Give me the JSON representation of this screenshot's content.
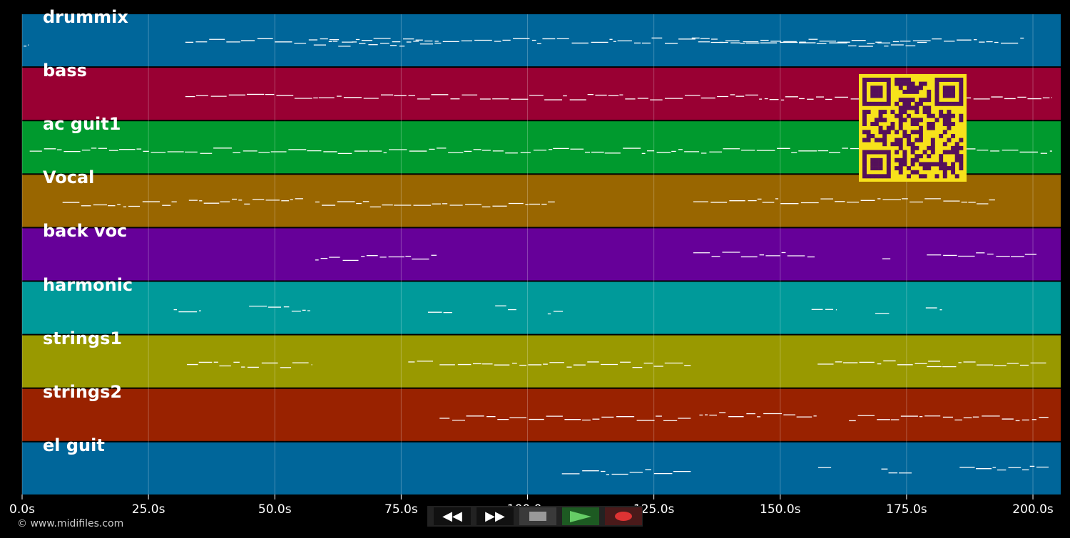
{
  "colors": {
    "background": "#000000",
    "note": "#ffffff",
    "qr_fg": "#55105a",
    "qr_bg": "#f7e21b"
  },
  "chart_data": {
    "type": "piano-roll",
    "x_unit": "s",
    "xlim": [
      0,
      205.5
    ],
    "x_ticks": [
      "0.0s",
      "25.0s",
      "50.0s",
      "75.0s",
      "100.0s",
      "125.0s",
      "150.0s",
      "175.0s",
      "200.0s"
    ],
    "x_tick_values": [
      0,
      25,
      50,
      75,
      100,
      125,
      150,
      175,
      200
    ],
    "grid": true,
    "tracks": [
      {
        "name": "drummix",
        "color": "#00669a",
        "note_regions": [
          [
            0.3,
            1.3
          ],
          [
            32.3,
            198.2
          ],
          [
            57.7,
            82.4
          ],
          [
            132.5,
            157.2
          ],
          [
            157.2,
            179
          ]
        ]
      },
      {
        "name": "bass",
        "color": "#990033",
        "note_regions": [
          [
            32.3,
            203.8
          ]
        ]
      },
      {
        "name": "ac guit1",
        "color": "#009a2e",
        "note_regions": [
          [
            1.5,
            203.8
          ]
        ]
      },
      {
        "name": "Vocal",
        "color": "#996600",
        "note_regions": [
          [
            8,
            30.6
          ],
          [
            33,
            55.6
          ],
          [
            58,
            105.4
          ],
          [
            132.8,
            192.5
          ]
        ]
      },
      {
        "name": "back voc",
        "color": "#660099",
        "note_regions": [
          [
            58,
            82
          ],
          [
            132.8,
            156.8
          ],
          [
            170.2,
            172
          ],
          [
            179,
            200.7
          ]
        ]
      },
      {
        "name": "harmonic",
        "color": "#009a9a",
        "note_regions": [
          [
            30,
            35.4
          ],
          [
            44.9,
            57
          ],
          [
            80.3,
            85.1
          ],
          [
            93.6,
            97.8
          ],
          [
            104,
            107
          ],
          [
            156.2,
            161.2
          ],
          [
            168.8,
            171.6
          ],
          [
            178.8,
            182
          ]
        ]
      },
      {
        "name": "strings1",
        "color": "#999900",
        "note_regions": [
          [
            32.6,
            57.4
          ],
          [
            76.4,
            81.3
          ],
          [
            82.6,
            132.3
          ],
          [
            157.4,
            182.2
          ],
          [
            179,
            202.7
          ]
        ]
      },
      {
        "name": "strings2",
        "color": "#992200",
        "note_regions": [
          [
            82.6,
            132.3
          ],
          [
            134,
            157.2
          ],
          [
            163.6,
            203.4
          ]
        ]
      },
      {
        "name": "el guit",
        "color": "#00669a",
        "note_regions": [
          [
            106.8,
            132.3
          ],
          [
            157.5,
            160.3
          ],
          [
            170,
            176
          ],
          [
            185.5,
            203.5
          ]
        ]
      }
    ]
  },
  "controls": {
    "rewind": "rewind-icon",
    "fast_forward": "fast-forward-icon",
    "stop": "stop-icon",
    "play": "play-icon",
    "record": "record-icon"
  },
  "footer": {
    "copyright": "© www.midifiles.com"
  }
}
